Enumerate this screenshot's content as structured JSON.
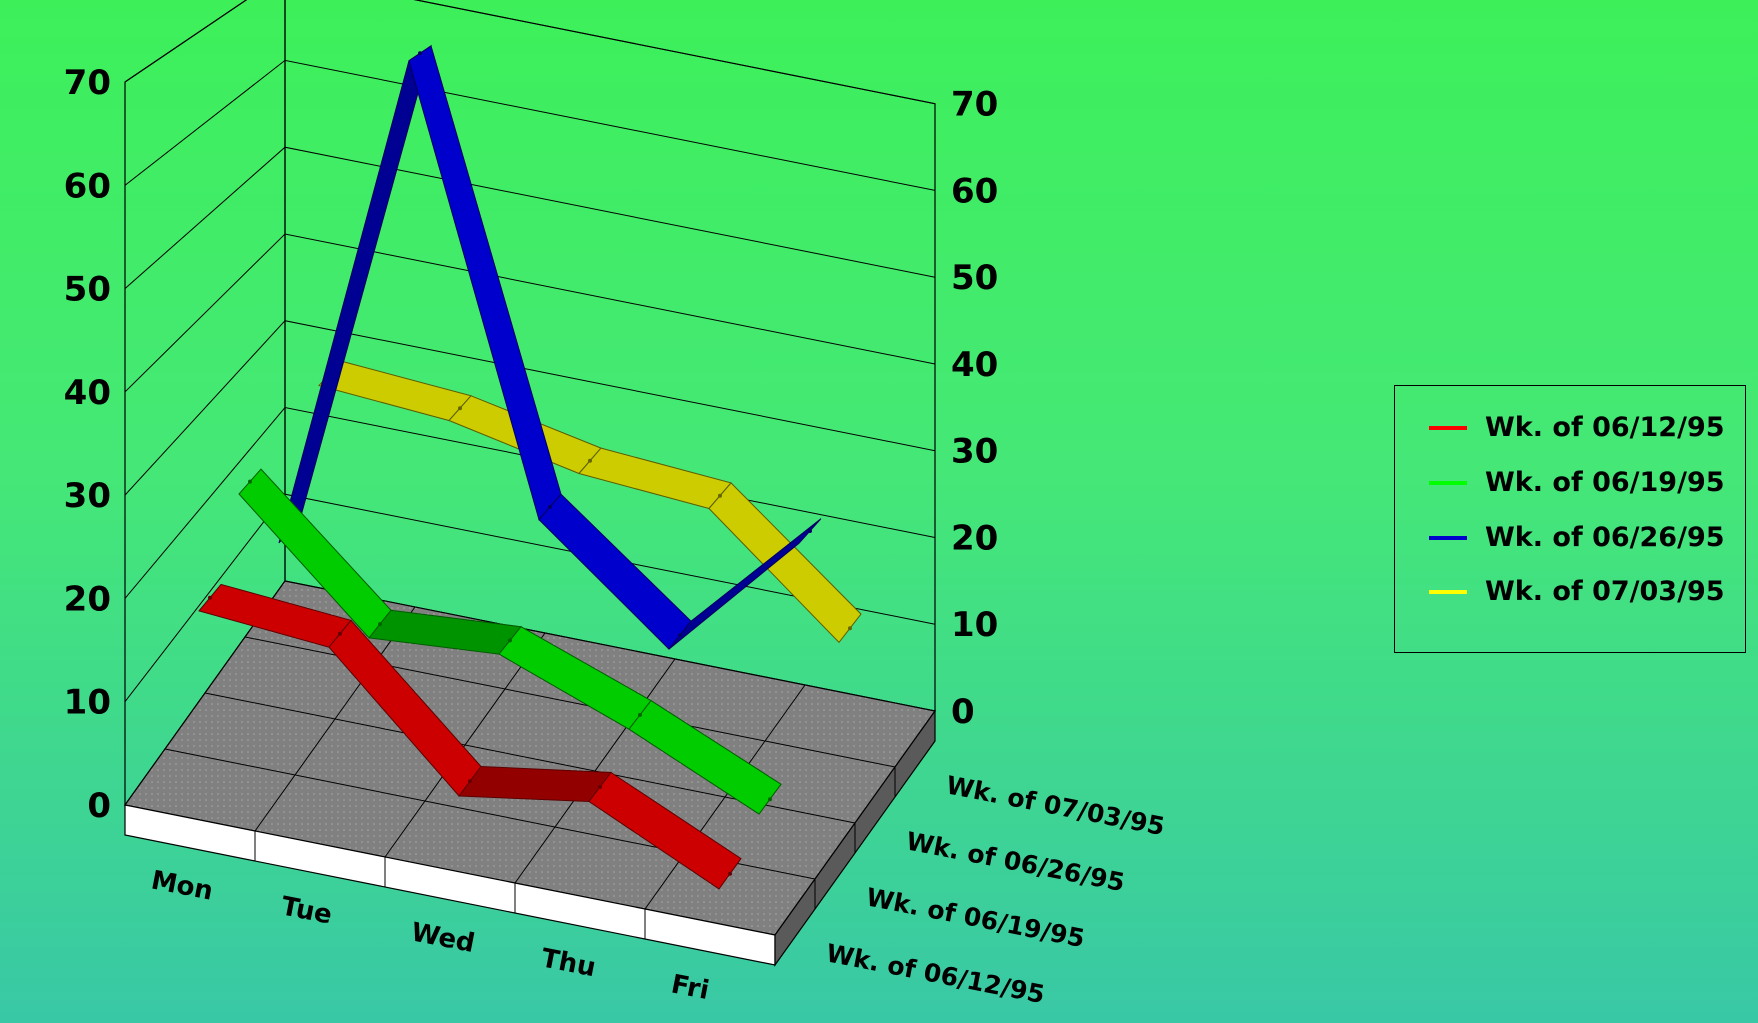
{
  "chart_data": {
    "type": "line",
    "categories": [
      "Mon",
      "Tue",
      "Wed",
      "Thu",
      "Fri"
    ],
    "depth_labels": [
      "Wk. of 06/12/95",
      "Wk. of 06/19/95",
      "Wk. of 06/26/95",
      "Wk. of 07/03/95"
    ],
    "series": [
      {
        "name": "Wk. of 06/12/95",
        "color": "#cc0000",
        "values": [
          19,
          18,
          6,
          8,
          2
        ]
      },
      {
        "name": "Wk. of 06/19/95",
        "color": "#00cc00",
        "values": [
          26,
          14,
          15,
          10,
          4
        ]
      },
      {
        "name": "Wk. of 06/26/95",
        "color": "#0000cc",
        "values": [
          16,
          70,
          24,
          13,
          27
        ]
      },
      {
        "name": "Wk. of 07/03/95",
        "color": "#cccc00",
        "values": [
          28,
          27,
          24,
          23,
          11
        ]
      }
    ],
    "yticks": [
      0,
      10,
      20,
      30,
      40,
      50,
      60,
      70
    ],
    "ylim": [
      0,
      70
    ],
    "grid": true,
    "legend_position": "right"
  }
}
